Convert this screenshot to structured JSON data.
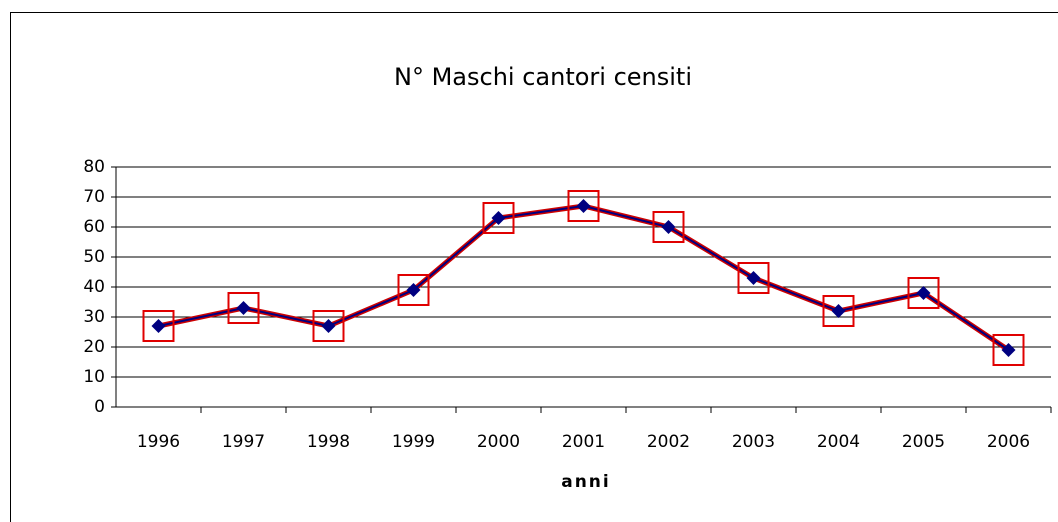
{
  "chart_data": {
    "type": "line",
    "title": "N° Maschi cantori censiti",
    "x_label": "anni",
    "categories": [
      "1996",
      "1997",
      "1998",
      "1999",
      "2000",
      "2001",
      "2002",
      "2003",
      "2004",
      "2005",
      "2006"
    ],
    "series": [
      {
        "name": "Maschi cantori",
        "color": "#000080",
        "values": [
          27,
          33,
          27,
          39,
          63,
          67,
          60,
          43,
          32,
          38,
          19
        ]
      }
    ],
    "line_color": "#cc0000",
    "marker_box_color": "#e00000",
    "ylim": [
      0,
      80
    ],
    "yticks": [
      0,
      10,
      20,
      30,
      40,
      50,
      60,
      70,
      80
    ],
    "grid": true
  }
}
